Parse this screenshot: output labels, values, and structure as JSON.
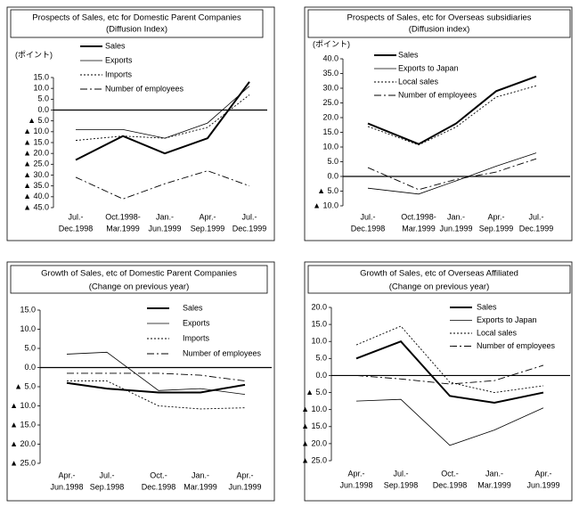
{
  "chart_data": [
    {
      "type": "line",
      "title": "Prospects of Sales, etc for Domestic Parent Companies",
      "subtitle": "(Diffusion Index)",
      "y_label": "(ポイント)",
      "categories": [
        [
          "Jul.-",
          "Dec.1998"
        ],
        [
          "Oct.1998-",
          "Mar.1999"
        ],
        [
          "Jan.-",
          "Jun.1999"
        ],
        [
          "Apr.-",
          "Sep.1999"
        ],
        [
          "Jul.-",
          "Dec.1999"
        ]
      ],
      "ylim": [
        -45,
        15
      ],
      "yticks": [
        {
          "value": 15,
          "label": "15.0"
        },
        {
          "value": 10,
          "label": "10.0"
        },
        {
          "value": 5,
          "label": "5.0"
        },
        {
          "value": 0,
          "label": "0.0"
        },
        {
          "value": -5,
          "label": "▲ 5.0"
        },
        {
          "value": -10,
          "label": "▲ 10.0"
        },
        {
          "value": -15,
          "label": "▲ 15.0"
        },
        {
          "value": -20,
          "label": "▲ 20.0"
        },
        {
          "value": -25,
          "label": "▲ 25.0"
        },
        {
          "value": -30,
          "label": "▲ 30.0"
        },
        {
          "value": -35,
          "label": "▲ 35.0"
        },
        {
          "value": -40,
          "label": "▲ 40.0"
        },
        {
          "value": -45,
          "label": "▲ 45.0"
        }
      ],
      "series": [
        {
          "name": "Sales",
          "color": "#000000",
          "line_style": "bold",
          "values": [
            -23,
            -12,
            -20,
            -13,
            13
          ]
        },
        {
          "name": "Exports",
          "color": "#000000",
          "line_style": "solid",
          "values": [
            -9,
            -9,
            -13,
            -6,
            11
          ]
        },
        {
          "name": "Imports",
          "color": "#000000",
          "line_style": "dotted",
          "values": [
            -14,
            -12,
            -13,
            -8,
            7
          ]
        },
        {
          "name": "Number of employees",
          "color": "#000000",
          "line_style": "dashdot",
          "values": [
            -31,
            -41,
            -34,
            -28,
            -35
          ]
        }
      ]
    },
    {
      "type": "line",
      "title": "Prospects of Sales, etc for Overseas subsidiaries",
      "subtitle": "(Diffusion index)",
      "y_label": "(ポイント)",
      "categories": [
        [
          "Jul.-",
          "Dec.1998"
        ],
        [
          "Oct.1998-",
          "Mar.1999"
        ],
        [
          "Jan.-",
          "Jun.1999"
        ],
        [
          "Apr.-",
          "Sep.1999"
        ],
        [
          "Jul.-",
          "Dec.1999"
        ]
      ],
      "ylim": [
        -10,
        40
      ],
      "yticks": [
        {
          "value": 40,
          "label": "40.0"
        },
        {
          "value": 35,
          "label": "35.0"
        },
        {
          "value": 30,
          "label": "30.0"
        },
        {
          "value": 25,
          "label": "25.0"
        },
        {
          "value": 20,
          "label": "20.0"
        },
        {
          "value": 15,
          "label": "15.0"
        },
        {
          "value": 10,
          "label": "10.0"
        },
        {
          "value": 5,
          "label": "5.0"
        },
        {
          "value": 0,
          "label": "0.0"
        },
        {
          "value": -5,
          "label": "▲ 5.0"
        },
        {
          "value": -10,
          "label": "▲ 10.0"
        }
      ],
      "series": [
        {
          "name": "Sales",
          "color": "#000000",
          "line_style": "bold",
          "values": [
            18,
            11,
            18,
            29,
            34
          ]
        },
        {
          "name": "Exports to Japan",
          "color": "#000000",
          "line_style": "solid",
          "values": [
            -4,
            -6,
            -1.5,
            3.5,
            8
          ]
        },
        {
          "name": "Local sales",
          "color": "#000000",
          "line_style": "dotted",
          "values": [
            17,
            10.7,
            16.8,
            27,
            30.8
          ]
        },
        {
          "name": "Number of employees",
          "color": "#000000",
          "line_style": "dashdot",
          "values": [
            3,
            -4.5,
            -1,
            1.5,
            6
          ]
        }
      ]
    },
    {
      "type": "line",
      "title": "Growth of Sales, etc of Domestic Parent Companies",
      "subtitle": "(Change on previous year)",
      "categories": [
        [
          "Apr.-",
          "Jun.1998"
        ],
        [
          "Jul.-",
          "Sep.1998"
        ],
        [
          "Oct.-",
          "Dec.1998"
        ],
        [
          "Jan.-",
          "Mar.1999"
        ],
        [
          "Apr.-",
          "Jun.1999"
        ]
      ],
      "ylim": [
        -25,
        15
      ],
      "yticks": [
        {
          "value": 15,
          "label": "15.0"
        },
        {
          "value": 10,
          "label": "10.0"
        },
        {
          "value": 5,
          "label": "5.0"
        },
        {
          "value": 0,
          "label": "0.0"
        },
        {
          "value": -5,
          "label": "▲ 5.0"
        },
        {
          "value": -10,
          "label": "▲ 10.0"
        },
        {
          "value": -15,
          "label": "▲ 15.0"
        },
        {
          "value": -20,
          "label": "▲ 20.0"
        },
        {
          "value": -25,
          "label": "▲ 25.0"
        }
      ],
      "series": [
        {
          "name": "Sales",
          "color": "#000000",
          "line_style": "bold",
          "values": [
            -4,
            -5.5,
            -6.5,
            -6.5,
            -4.5
          ]
        },
        {
          "name": "Exports",
          "color": "#000000",
          "line_style": "solid",
          "values": [
            3.5,
            4,
            -6,
            -5.5,
            -7
          ]
        },
        {
          "name": "Imports",
          "color": "#000000",
          "line_style": "dotted",
          "values": [
            -3.5,
            -3.5,
            -10,
            -10.8,
            -10.5
          ]
        },
        {
          "name": "Number of employees",
          "color": "#000000",
          "line_style": "dashdot",
          "values": [
            -1.5,
            -1.5,
            -1.5,
            -2,
            -3.5
          ]
        }
      ]
    },
    {
      "type": "line",
      "title": "Growth of Sales, etc of Overseas Affiliated",
      "subtitle": "(Change on previous year)",
      "categories": [
        [
          "Apr.-",
          "Jun.1998"
        ],
        [
          "Jul.-",
          "Sep.1998"
        ],
        [
          "Oct.-",
          "Dec.1998"
        ],
        [
          "Jan.-",
          "Mar.1999"
        ],
        [
          "Apr.-",
          "Jun.1999"
        ]
      ],
      "ylim": [
        -25,
        20
      ],
      "yticks": [
        {
          "value": 20,
          "label": "20.0"
        },
        {
          "value": 15,
          "label": "15.0"
        },
        {
          "value": 10,
          "label": "10.0"
        },
        {
          "value": 5,
          "label": "5.0"
        },
        {
          "value": 0,
          "label": "0.0"
        },
        {
          "value": -5,
          "label": "▲ 5.0"
        },
        {
          "value": -10,
          "label": "▲ 10.0"
        },
        {
          "value": -15,
          "label": "▲ 15.0"
        },
        {
          "value": -20,
          "label": "▲ 20.0"
        },
        {
          "value": -25,
          "label": "▲ 25.0"
        }
      ],
      "series": [
        {
          "name": "Sales",
          "color": "#000000",
          "line_style": "bold",
          "values": [
            5,
            10,
            -6,
            -8,
            -5
          ]
        },
        {
          "name": "Exports to Japan",
          "color": "#000000",
          "line_style": "solid",
          "values": [
            -7.5,
            -7,
            -20.5,
            -16,
            -9.5
          ]
        },
        {
          "name": "Local sales",
          "color": "#000000",
          "line_style": "dotted",
          "values": [
            9,
            14.5,
            -2,
            -5,
            -3
          ]
        },
        {
          "name": "Number of employees",
          "color": "#000000",
          "line_style": "dashdot",
          "values": [
            0,
            -1,
            -2.5,
            -1.5,
            3
          ]
        }
      ]
    }
  ]
}
